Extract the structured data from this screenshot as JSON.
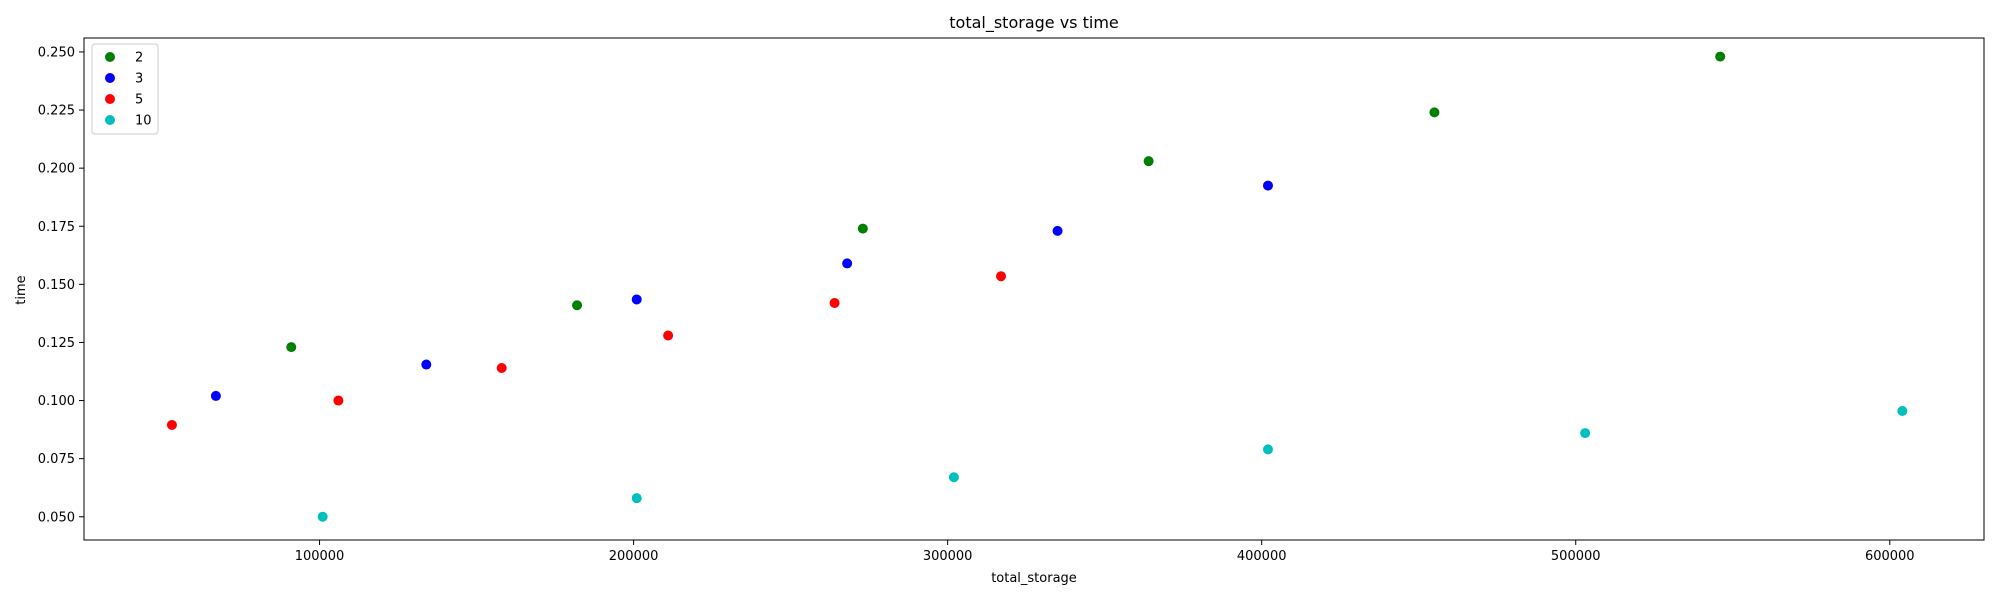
{
  "chart_data": {
    "type": "scatter",
    "title": "total_storage vs time",
    "xlabel": "total_storage",
    "ylabel": "time",
    "xlim": [
      25000,
      630000
    ],
    "ylim": [
      0.04,
      0.256
    ],
    "xticks": [
      100000,
      200000,
      300000,
      400000,
      500000,
      600000
    ],
    "xtick_labels": [
      "100000",
      "200000",
      "300000",
      "400000",
      "500000",
      "600000"
    ],
    "yticks": [
      0.05,
      0.075,
      0.1,
      0.125,
      0.15,
      0.175,
      0.2,
      0.225,
      0.25
    ],
    "ytick_labels": [
      "0.050",
      "0.075",
      "0.100",
      "0.125",
      "0.150",
      "0.175",
      "0.200",
      "0.225",
      "0.250"
    ],
    "grid": false,
    "legend_position": "top-left",
    "series": [
      {
        "name": "2",
        "color": "#008000",
        "points": [
          {
            "x": 91000,
            "y": 0.123
          },
          {
            "x": 182000,
            "y": 0.141
          },
          {
            "x": 273000,
            "y": 0.174
          },
          {
            "x": 364000,
            "y": 0.203
          },
          {
            "x": 455000,
            "y": 0.224
          },
          {
            "x": 546000,
            "y": 0.248
          }
        ]
      },
      {
        "name": "3",
        "color": "#0000ff",
        "points": [
          {
            "x": 67000,
            "y": 0.102
          },
          {
            "x": 134000,
            "y": 0.1155
          },
          {
            "x": 201000,
            "y": 0.1435
          },
          {
            "x": 268000,
            "y": 0.159
          },
          {
            "x": 335000,
            "y": 0.173
          },
          {
            "x": 402000,
            "y": 0.1925
          }
        ]
      },
      {
        "name": "5",
        "color": "#ff0000",
        "points": [
          {
            "x": 53000,
            "y": 0.0895
          },
          {
            "x": 106000,
            "y": 0.1
          },
          {
            "x": 158000,
            "y": 0.114
          },
          {
            "x": 211000,
            "y": 0.128
          },
          {
            "x": 264000,
            "y": 0.142
          },
          {
            "x": 317000,
            "y": 0.1535
          }
        ]
      },
      {
        "name": "10",
        "color": "#00bfbf",
        "points": [
          {
            "x": 101000,
            "y": 0.05
          },
          {
            "x": 201000,
            "y": 0.058
          },
          {
            "x": 302000,
            "y": 0.067
          },
          {
            "x": 402000,
            "y": 0.079
          },
          {
            "x": 503000,
            "y": 0.086
          },
          {
            "x": 604000,
            "y": 0.0955
          }
        ]
      }
    ]
  }
}
